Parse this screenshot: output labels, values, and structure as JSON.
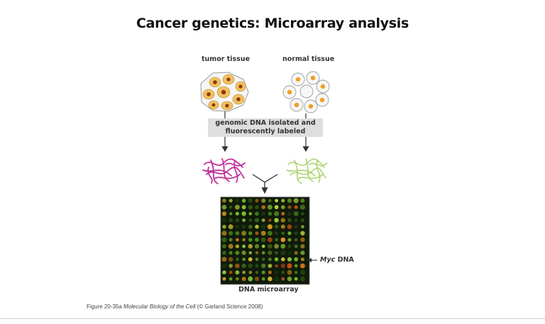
{
  "title": "Cancer genetics: Microarray analysis",
  "labels": {
    "tumor": "tumor tissue",
    "normal": "normal tissue",
    "banner_line1": "genomic DNA isolated and",
    "banner_line2": "fluorescently labeled",
    "myc_italic": "Myc",
    "myc_rest": " DNA",
    "microarray": "DNA microarray"
  },
  "caption": {
    "prefix": "Figure 20-35a ",
    "book": "Molecular Biology of the Cell",
    "suffix": " (© Garland Science 2008)"
  },
  "colors": {
    "tumor_dna": "#c0329a",
    "normal_dna": "#a8d26a",
    "cell_nucleus": "#f0a020",
    "array_bg": "#0f1a0a"
  }
}
